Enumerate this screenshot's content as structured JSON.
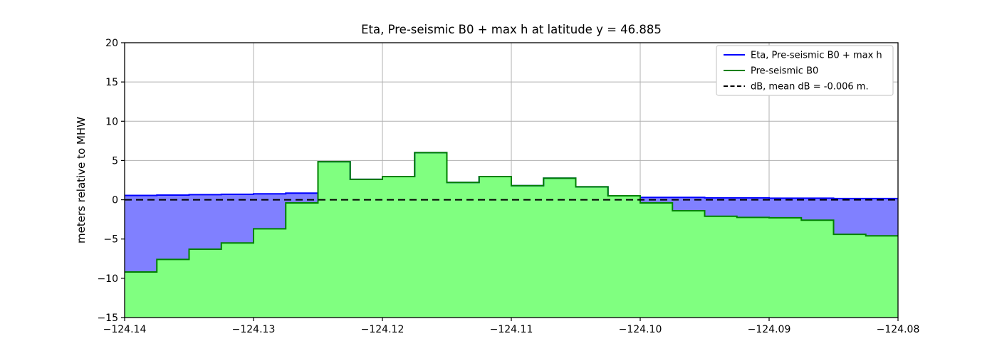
{
  "figure": {
    "background": "#ffffff"
  },
  "chart_data": {
    "type": "area",
    "subtype": "step-filled-area",
    "title": "Eta, Pre-seismic B0 + max h at latitude y = 46.885",
    "xlabel": "",
    "ylabel": "meters relative to MHW",
    "xlim": [
      -124.14,
      -124.08
    ],
    "ylim": [
      -15,
      20
    ],
    "grid": true,
    "grid_color": "#b0b0b0",
    "legend_position": "upper right",
    "x_start": -124.14,
    "x_step": 0.0025,
    "n_cells": 24,
    "xticks": [
      {
        "value": -124.14,
        "label": "−124.14"
      },
      {
        "value": -124.13,
        "label": "−124.13"
      },
      {
        "value": -124.12,
        "label": "−124.12"
      },
      {
        "value": -124.11,
        "label": "−124.11"
      },
      {
        "value": -124.1,
        "label": "−124.10"
      },
      {
        "value": -124.09,
        "label": "−124.09"
      },
      {
        "value": -124.08,
        "label": "−124.08"
      }
    ],
    "yticks": [
      {
        "value": 20,
        "label": "20"
      },
      {
        "value": 15,
        "label": "15"
      },
      {
        "value": 10,
        "label": "10"
      },
      {
        "value": 5,
        "label": "5"
      },
      {
        "value": 0,
        "label": "0"
      },
      {
        "value": -5,
        "label": "−5"
      },
      {
        "value": -10,
        "label": "−10"
      },
      {
        "value": -15,
        "label": "−15"
      }
    ],
    "series": [
      {
        "name": "Eta, Pre-seismic B0 + max h",
        "type": "step-area",
        "line_color": "#0000ff",
        "fill_color": "#8080ff",
        "values": [
          0.55,
          0.6,
          0.65,
          0.7,
          0.75,
          0.85,
          4.85,
          2.6,
          2.95,
          6.0,
          2.2,
          2.95,
          1.8,
          2.75,
          1.65,
          0.5,
          0.3,
          0.3,
          0.25,
          0.25,
          0.2,
          0.2,
          0.15,
          0.15
        ]
      },
      {
        "name": "Pre-seismic B0",
        "type": "step-area",
        "line_color": "#008000",
        "fill_color": "#80ff80",
        "values": [
          -9.2,
          -7.6,
          -6.3,
          -5.5,
          -3.7,
          -0.4,
          4.85,
          2.6,
          2.95,
          6.0,
          2.2,
          2.95,
          1.8,
          2.75,
          1.65,
          0.5,
          -0.4,
          -1.4,
          -2.1,
          -2.25,
          -2.3,
          -2.6,
          -4.4,
          -4.6
        ]
      },
      {
        "name": "dB, mean dB = -0.006 m.",
        "type": "hline",
        "line_color": "#000000",
        "line_style": "dashed",
        "value": -0.006
      }
    ]
  }
}
